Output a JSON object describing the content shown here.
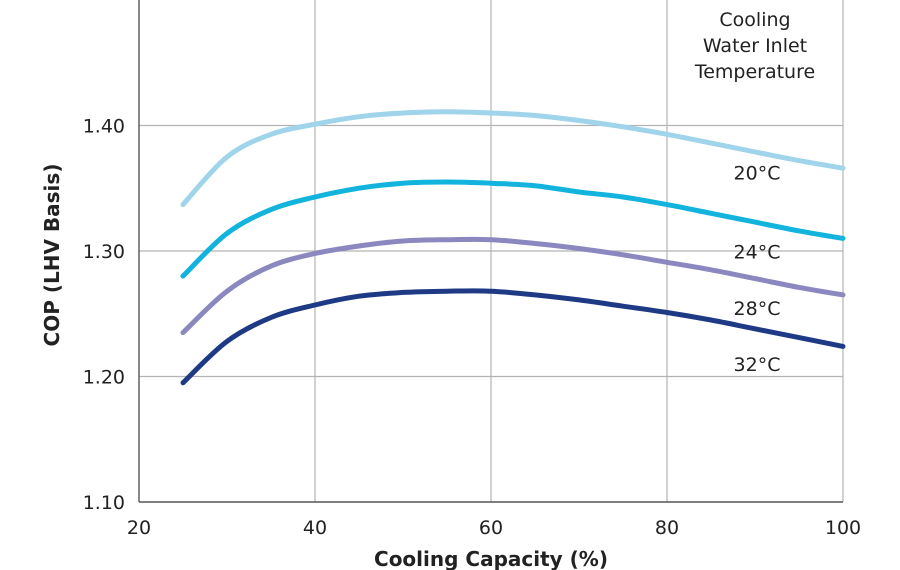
{
  "chart_data": {
    "type": "line",
    "title": "",
    "xlabel": "Cooling Capacity (%)",
    "ylabel": "COP (LHV Basis)",
    "xlim": [
      20,
      100
    ],
    "ylim": [
      1.1,
      1.5
    ],
    "x_ticks": [
      20,
      40,
      60,
      80,
      100
    ],
    "x_tick_labels": [
      "20",
      "40",
      "60",
      "80",
      "100"
    ],
    "y_ticks": [
      1.1,
      1.2,
      1.3,
      1.4
    ],
    "y_tick_labels": [
      "1.10",
      "1.20",
      "1.30",
      "1.40"
    ],
    "grid": true,
    "legend_title_lines": [
      "Cooling",
      "Water Inlet",
      "Temperature"
    ],
    "legend_placement": "top-right",
    "series": [
      {
        "name": "20°C",
        "color": "#9fd4ea",
        "x": [
          25,
          30,
          35,
          40,
          45,
          50,
          55,
          60,
          65,
          70,
          75,
          80,
          85,
          90,
          95,
          100
        ],
        "y": [
          1.337,
          1.375,
          1.393,
          1.401,
          1.407,
          1.41,
          1.411,
          1.41,
          1.408,
          1.404,
          1.399,
          1.393,
          1.386,
          1.379,
          1.372,
          1.366
        ]
      },
      {
        "name": "24°C",
        "color": "#12b3dd",
        "x": [
          25,
          30,
          35,
          40,
          45,
          50,
          55,
          60,
          65,
          70,
          75,
          80,
          85,
          90,
          95,
          100
        ],
        "y": [
          1.28,
          1.314,
          1.333,
          1.343,
          1.35,
          1.354,
          1.355,
          1.354,
          1.352,
          1.347,
          1.343,
          1.337,
          1.33,
          1.323,
          1.316,
          1.31
        ]
      },
      {
        "name": "28°C",
        "color": "#8a88bf",
        "x": [
          25,
          30,
          35,
          40,
          45,
          50,
          55,
          60,
          65,
          70,
          75,
          80,
          85,
          90,
          95,
          100
        ],
        "y": [
          1.235,
          1.268,
          1.288,
          1.298,
          1.304,
          1.308,
          1.309,
          1.309,
          1.306,
          1.302,
          1.297,
          1.291,
          1.285,
          1.278,
          1.271,
          1.265
        ]
      },
      {
        "name": "32°C",
        "color": "#1f3a85",
        "x": [
          25,
          30,
          35,
          40,
          45,
          50,
          55,
          60,
          65,
          70,
          75,
          80,
          85,
          90,
          95,
          100
        ],
        "y": [
          1.195,
          1.228,
          1.247,
          1.257,
          1.264,
          1.267,
          1.268,
          1.268,
          1.265,
          1.261,
          1.256,
          1.251,
          1.245,
          1.238,
          1.231,
          1.224
        ]
      }
    ]
  }
}
